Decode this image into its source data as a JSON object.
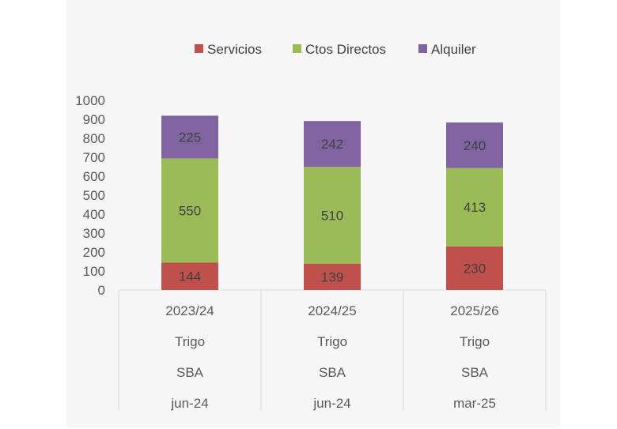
{
  "chart_data": {
    "type": "bar",
    "stacked": true,
    "categories": [
      [
        "2023/24",
        "Trigo",
        "SBA",
        "jun-24"
      ],
      [
        "2024/25",
        "Trigo",
        "SBA",
        "jun-24"
      ],
      [
        "2025/26",
        "Trigo",
        "SBA",
        "mar-25"
      ]
    ],
    "series": [
      {
        "name": "Servicios",
        "color": "#c0504d",
        "values": [
          144,
          139,
          230
        ]
      },
      {
        "name": "Ctos Directos",
        "color": "#9bbb59",
        "values": [
          550,
          510,
          413
        ]
      },
      {
        "name": "Alquiler",
        "color": "#8064a2",
        "values": [
          225,
          242,
          240
        ]
      }
    ],
    "ylim": [
      0,
      1000
    ],
    "yticks": [
      0,
      100,
      200,
      300,
      400,
      500,
      600,
      700,
      800,
      900,
      1000
    ],
    "legend_position": "top",
    "grid": false,
    "data_labels": true
  }
}
